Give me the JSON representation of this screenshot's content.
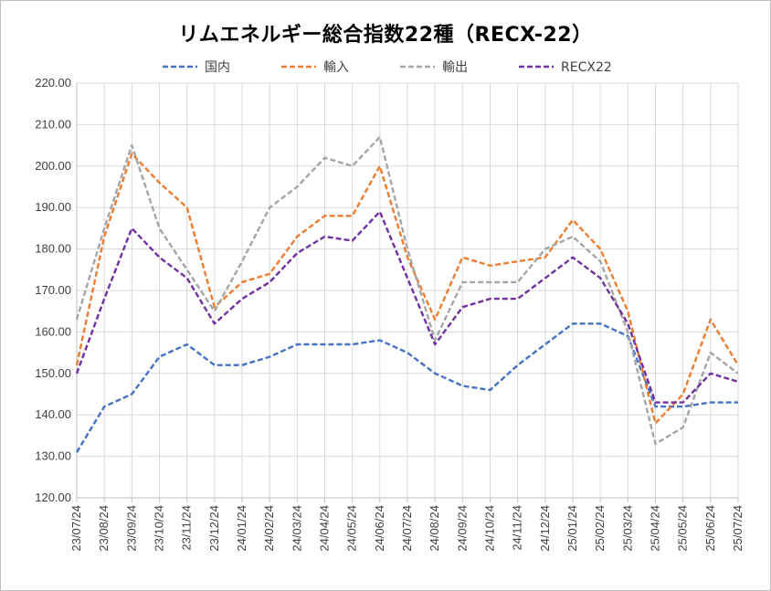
{
  "chart_data": {
    "type": "line",
    "title": "リムエネルギー総合指数22種（RECX-22）",
    "x": [
      "23/07/24",
      "23/08/24",
      "23/09/24",
      "23/10/24",
      "23/11/24",
      "23/12/24",
      "24/01/24",
      "24/02/24",
      "24/03/24",
      "24/04/24",
      "24/05/24",
      "24/06/24",
      "24/07/24",
      "24/08/24",
      "24/09/24",
      "24/10/24",
      "24/11/24",
      "24/12/24",
      "25/01/24",
      "25/02/24",
      "25/03/24",
      "25/04/24",
      "25/05/24",
      "25/06/24",
      "25/07/24"
    ],
    "xlabel": "",
    "ylabel": "",
    "ylim": [
      120,
      220
    ],
    "yticks": [
      "120.00",
      "130.00",
      "140.00",
      "150.00",
      "160.00",
      "170.00",
      "180.00",
      "190.00",
      "200.00",
      "210.00",
      "220.00"
    ],
    "grid": true,
    "legend_position": "top",
    "series": [
      {
        "name": "国内",
        "color": "#4472c4",
        "style": "dashed",
        "values": [
          131,
          142,
          145,
          154,
          157,
          152,
          152,
          154,
          157,
          157,
          157,
          158,
          155,
          150,
          147,
          146,
          152,
          157,
          162,
          162,
          159,
          142,
          142,
          143,
          143
        ]
      },
      {
        "name": "輸入",
        "color": "#ed7d31",
        "style": "dashed",
        "values": [
          152,
          183,
          203,
          196,
          190,
          166,
          172,
          174,
          183,
          188,
          188,
          200,
          178,
          163,
          178,
          176,
          177,
          178,
          187,
          180,
          165,
          138,
          145,
          163,
          152
        ]
      },
      {
        "name": "輸出",
        "color": "#a5a5a5",
        "style": "dashed",
        "values": [
          163,
          185,
          205,
          185,
          175,
          165,
          177,
          190,
          195,
          202,
          200,
          207,
          180,
          158,
          172,
          172,
          172,
          180,
          183,
          177,
          160,
          133,
          137,
          155,
          150
        ]
      },
      {
        "name": "RECX22",
        "color": "#7030a0",
        "style": "dashed",
        "values": [
          150,
          168,
          185,
          178,
          173,
          162,
          168,
          172,
          179,
          183,
          182,
          189,
          173,
          157,
          166,
          168,
          168,
          173,
          178,
          173,
          162,
          143,
          143,
          150,
          148
        ]
      }
    ]
  }
}
